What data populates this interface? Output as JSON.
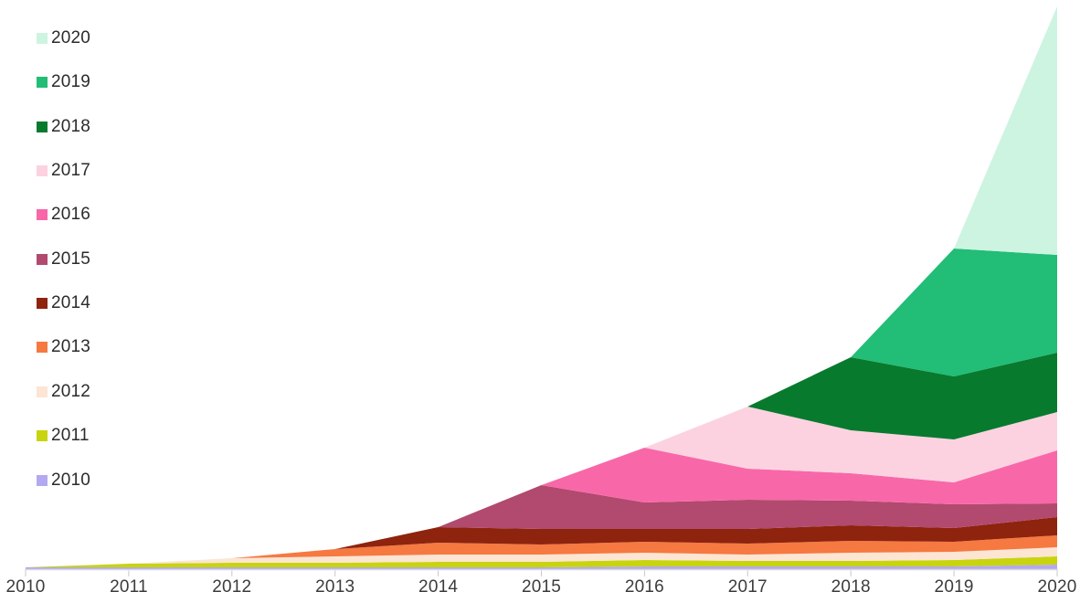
{
  "background": "#ffffff",
  "chart_data": {
    "type": "area",
    "stacked": true,
    "title": "",
    "xlabel": "",
    "ylabel": "",
    "grid": false,
    "y_axis_visible": false,
    "ylim": [
      0,
      648
    ],
    "y_unit": "relative (no y-axis shown)",
    "x": [
      2010,
      2011,
      2012,
      2013,
      2014,
      2015,
      2016,
      2017,
      2018,
      2019,
      2020
    ],
    "x_tick_labels": [
      "2010",
      "2011",
      "2012",
      "2013",
      "2014",
      "2015",
      "2016",
      "2017",
      "2018",
      "2019",
      "2020"
    ],
    "series": [
      {
        "name": "2010",
        "color": "#b3a9f1",
        "values": [
          2,
          2,
          2,
          2,
          2,
          2,
          3,
          3,
          3,
          3,
          5
        ]
      },
      {
        "name": "2011",
        "color": "#c8d40e",
        "values": [
          0,
          4,
          5,
          5,
          6,
          6,
          7,
          6,
          6,
          7,
          9
        ]
      },
      {
        "name": "2012",
        "color": "#fce5d3",
        "values": [
          0,
          0,
          5,
          7,
          8,
          8,
          8,
          7,
          9,
          9,
          10
        ]
      },
      {
        "name": "2013",
        "color": "#f57941",
        "values": [
          0,
          0,
          0,
          8,
          13,
          11,
          12,
          12,
          13,
          11,
          13
        ]
      },
      {
        "name": "2014",
        "color": "#8e230e",
        "values": [
          0,
          0,
          0,
          0,
          17,
          17,
          14,
          16,
          17,
          15,
          20
        ]
      },
      {
        "name": "2015",
        "color": "#b14a6e",
        "values": [
          0,
          0,
          0,
          0,
          0,
          48,
          29,
          32,
          27,
          26,
          15
        ]
      },
      {
        "name": "2016",
        "color": "#f868a8",
        "values": [
          0,
          0,
          0,
          0,
          0,
          0,
          60,
          34,
          30,
          24,
          58
        ]
      },
      {
        "name": "2017",
        "color": "#fcd2e1",
        "values": [
          0,
          0,
          0,
          0,
          0,
          0,
          0,
          68,
          47,
          47,
          42
        ]
      },
      {
        "name": "2018",
        "color": "#077a2e",
        "values": [
          0,
          0,
          0,
          0,
          0,
          0,
          0,
          0,
          80,
          69,
          65
        ]
      },
      {
        "name": "2019",
        "color": "#22bd76",
        "values": [
          0,
          0,
          0,
          0,
          0,
          0,
          0,
          0,
          0,
          140,
          107
        ]
      },
      {
        "name": "2020",
        "color": "#ccf4e1",
        "values": [
          0,
          0,
          0,
          0,
          0,
          0,
          0,
          0,
          0,
          0,
          272
        ]
      }
    ],
    "legend": {
      "position": "top-left",
      "order_top_to_bottom": [
        "2020",
        "2019",
        "2018",
        "2017",
        "2016",
        "2015",
        "2014",
        "2013",
        "2012",
        "2011",
        "2010"
      ]
    },
    "axis_style": {
      "line_color": "#d9d9d9",
      "tick_color": "#c9c9c9",
      "label_color": "#3c3c3c"
    }
  }
}
